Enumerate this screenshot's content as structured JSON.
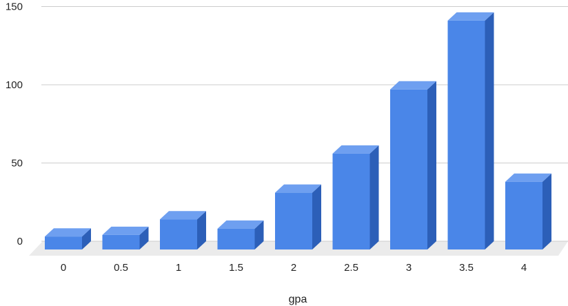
{
  "chart_data": {
    "type": "bar",
    "style": "3d",
    "categories": [
      "0",
      "0.5",
      "1",
      "1.5",
      "2",
      "2.5",
      "3",
      "3.5",
      "4"
    ],
    "values": [
      3,
      4,
      14,
      8,
      31,
      56,
      97,
      141,
      38
    ],
    "title": "",
    "xlabel": "gpa",
    "ylabel": "",
    "ylim": [
      0,
      150
    ],
    "yticks": [
      0,
      50,
      100,
      150
    ],
    "grid": true,
    "legend": "none",
    "colors": {
      "bar_front": "#4a86e8",
      "bar_top": "#6e9ff0",
      "bar_side": "#2c5fb8",
      "floor": "#ebebeb",
      "grid": "#cccccc"
    }
  }
}
